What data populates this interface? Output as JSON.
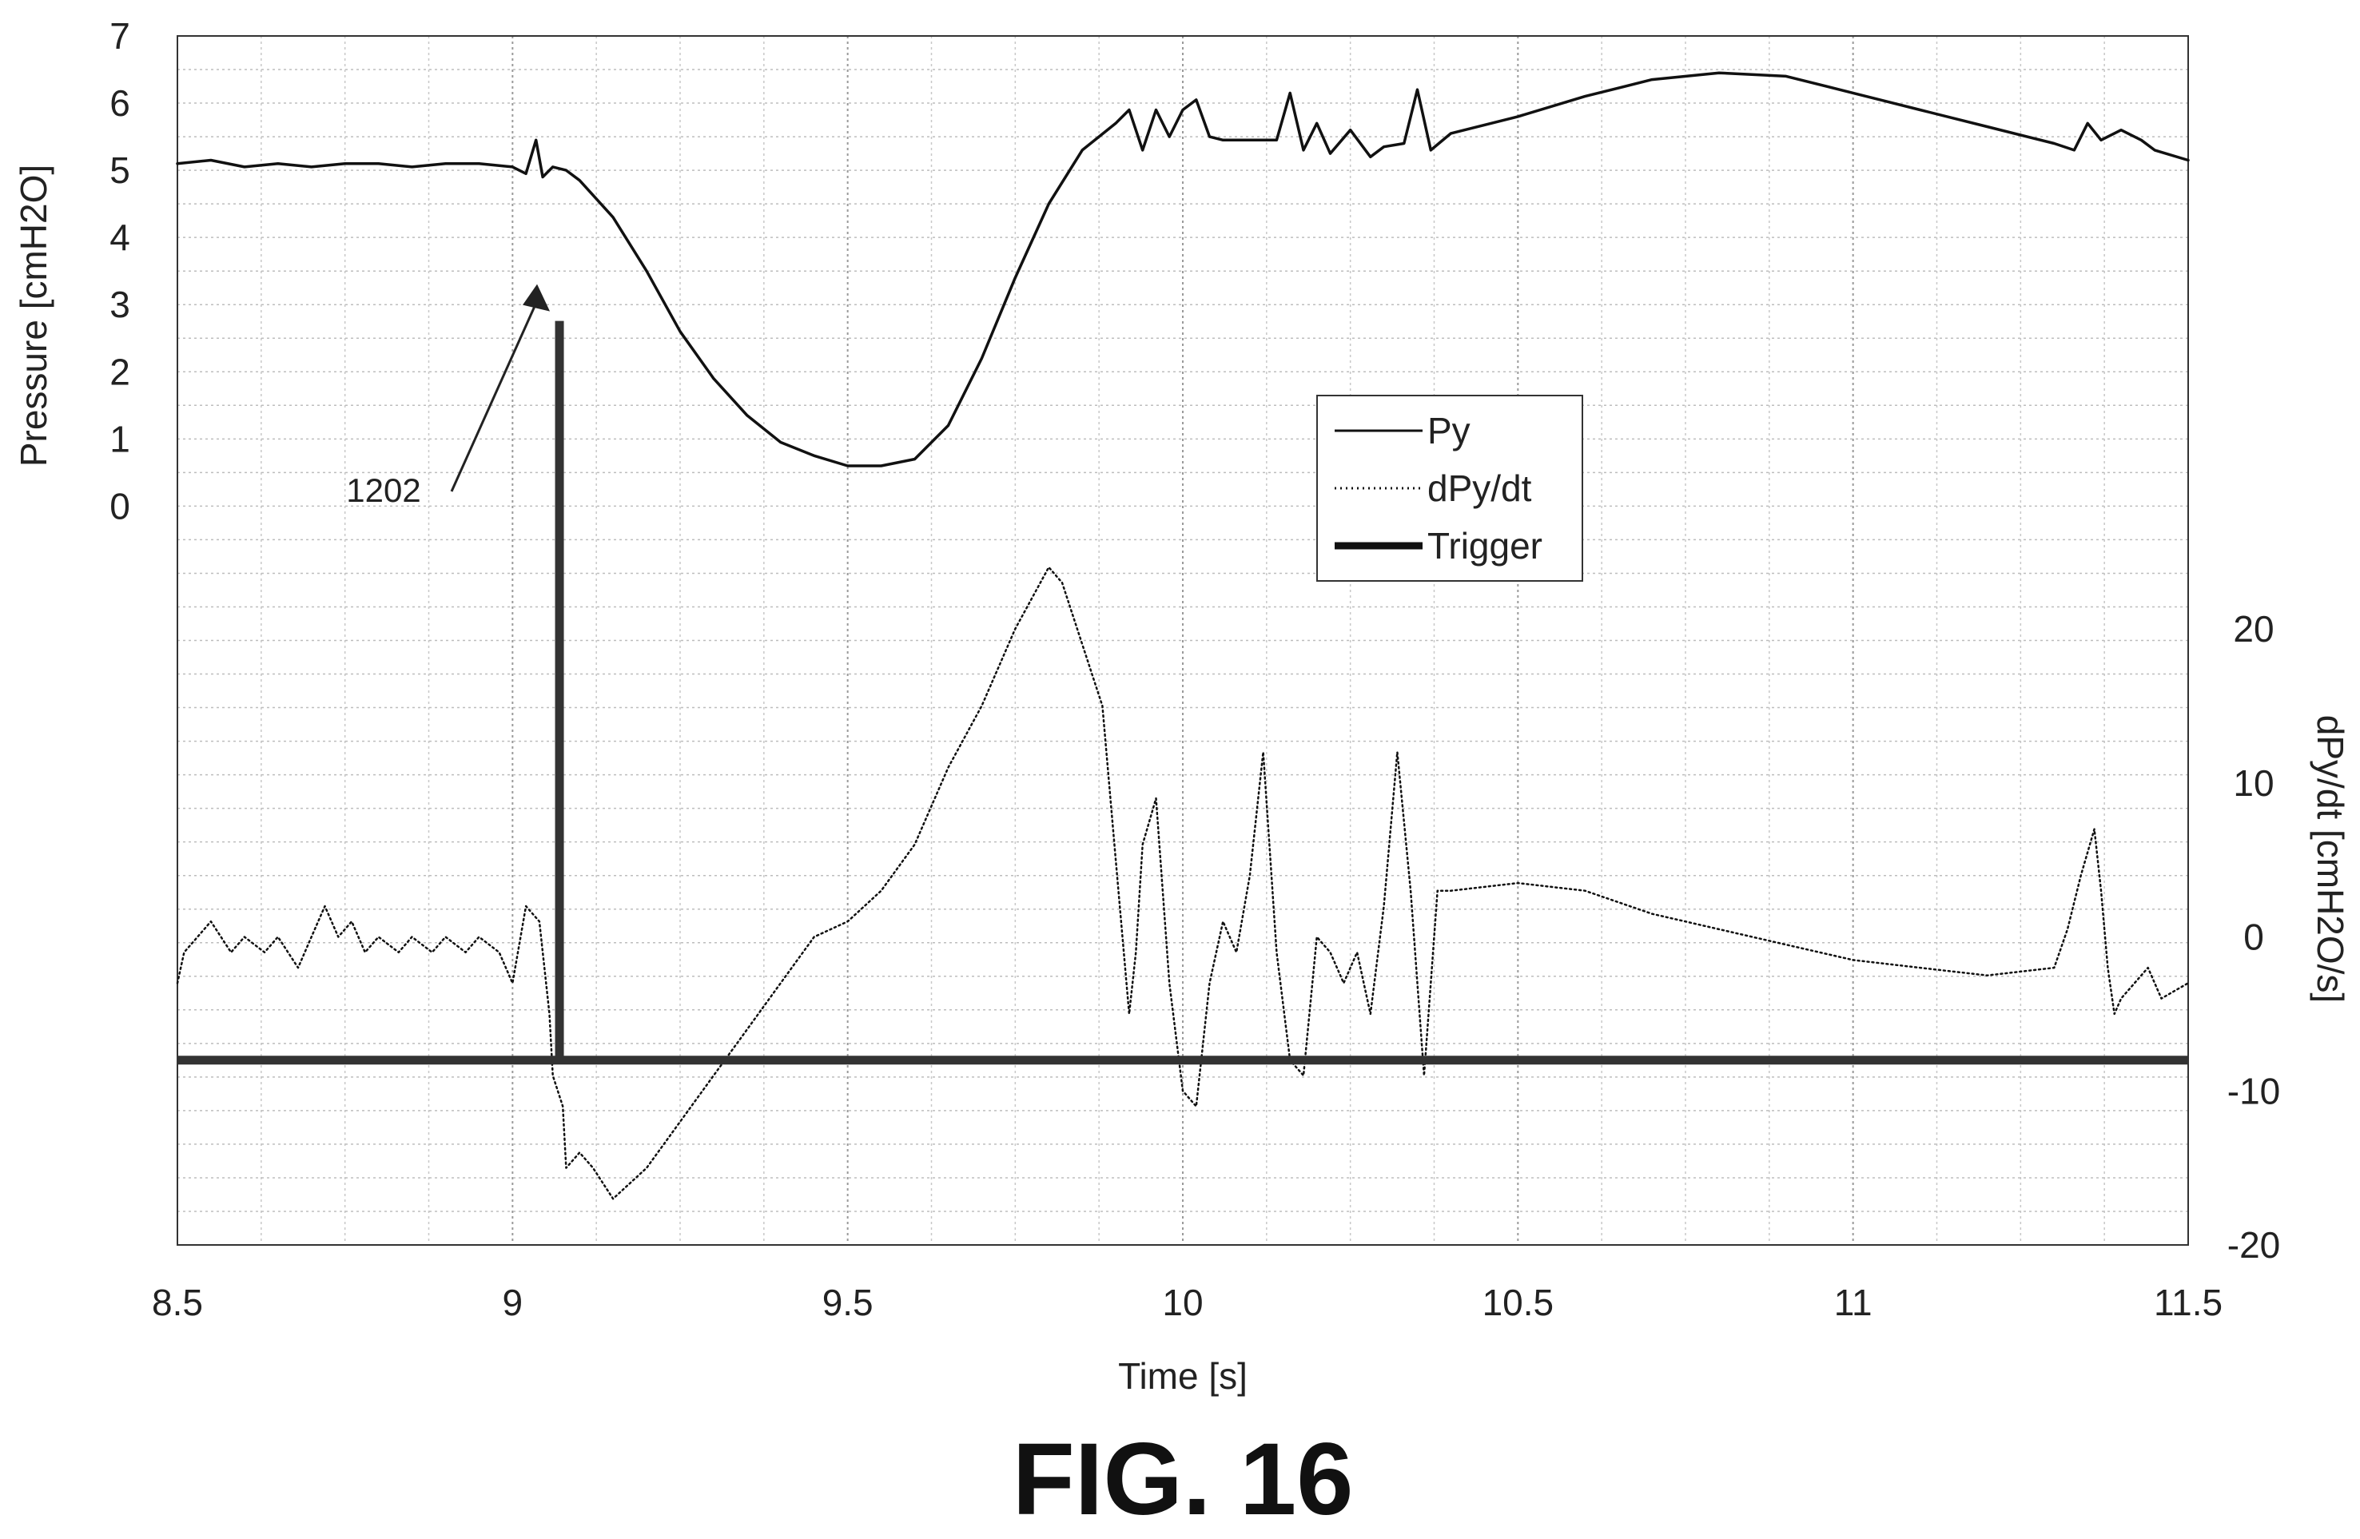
{
  "caption": "FIG. 16",
  "annotation": {
    "label": "1202"
  },
  "chart_data": {
    "type": "line",
    "xlabel": "Time [s]",
    "xlim": [
      8.5,
      11.5
    ],
    "x_ticks": [
      8.5,
      9,
      9.5,
      10,
      10.5,
      11,
      11.5
    ],
    "x_tick_labels": [
      "8.5",
      "9",
      "9.5",
      "10",
      "10.5",
      "11",
      "11.5"
    ],
    "grid": true,
    "legend_position": "center",
    "axes": {
      "left": {
        "label": "Pressure [cmH2O]",
        "range": [
          -11,
          7
        ],
        "ticks": [
          0,
          1,
          2,
          3,
          4,
          5,
          6,
          7
        ],
        "tick_labels": [
          "0",
          "1",
          "2",
          "3",
          "4",
          "5",
          "6",
          "7"
        ]
      },
      "right": {
        "label": "dPy/dt [cmH2O/s]",
        "range": [
          -20,
          58.5
        ],
        "ticks": [
          -20,
          -10,
          0,
          10,
          20
        ],
        "tick_labels": [
          "-20",
          "-10",
          "0",
          "10",
          "20"
        ]
      }
    },
    "series": [
      {
        "name": "Py",
        "axis": "left",
        "style": "solid",
        "x": [
          8.5,
          8.55,
          8.6,
          8.65,
          8.7,
          8.75,
          8.8,
          8.85,
          8.9,
          8.95,
          9.0,
          9.02,
          9.035,
          9.045,
          9.06,
          9.08,
          9.1,
          9.15,
          9.2,
          9.25,
          9.3,
          9.35,
          9.4,
          9.45,
          9.5,
          9.55,
          9.6,
          9.65,
          9.7,
          9.75,
          9.8,
          9.85,
          9.9,
          9.92,
          9.94,
          9.96,
          9.98,
          10.0,
          10.02,
          10.04,
          10.06,
          10.1,
          10.14,
          10.16,
          10.18,
          10.2,
          10.22,
          10.25,
          10.28,
          10.3,
          10.33,
          10.35,
          10.37,
          10.4,
          10.5,
          10.6,
          10.7,
          10.8,
          10.9,
          11.0,
          11.1,
          11.2,
          11.3,
          11.33,
          11.35,
          11.37,
          11.4,
          11.43,
          11.45,
          11.5
        ],
        "y": [
          5.1,
          5.15,
          5.05,
          5.1,
          5.05,
          5.1,
          5.1,
          5.05,
          5.1,
          5.1,
          5.05,
          4.95,
          5.45,
          4.9,
          5.05,
          5.0,
          4.85,
          4.3,
          3.5,
          2.6,
          1.9,
          1.35,
          0.95,
          0.75,
          0.6,
          0.6,
          0.7,
          1.2,
          2.2,
          3.4,
          4.5,
          5.3,
          5.7,
          5.9,
          5.3,
          5.9,
          5.5,
          5.9,
          6.05,
          5.5,
          5.45,
          5.45,
          5.45,
          6.15,
          5.3,
          5.7,
          5.25,
          5.6,
          5.2,
          5.35,
          5.4,
          6.2,
          5.3,
          5.55,
          5.8,
          6.1,
          6.35,
          6.45,
          6.4,
          6.15,
          5.9,
          5.65,
          5.4,
          5.3,
          5.7,
          5.45,
          5.6,
          5.45,
          5.3,
          5.15
        ]
      },
      {
        "name": "dPy/dt",
        "axis": "right",
        "style": "dotted",
        "x": [
          8.5,
          8.51,
          8.53,
          8.55,
          8.58,
          8.6,
          8.63,
          8.65,
          8.68,
          8.7,
          8.72,
          8.74,
          8.76,
          8.78,
          8.8,
          8.83,
          8.85,
          8.88,
          8.9,
          8.93,
          8.95,
          8.98,
          9.0,
          9.02,
          9.04,
          9.055,
          9.06,
          9.075,
          9.08,
          9.1,
          9.12,
          9.15,
          9.2,
          9.25,
          9.3,
          9.35,
          9.4,
          9.45,
          9.5,
          9.55,
          9.6,
          9.65,
          9.7,
          9.75,
          9.8,
          9.82,
          9.85,
          9.88,
          9.9,
          9.92,
          9.93,
          9.94,
          9.96,
          9.98,
          10.0,
          10.02,
          10.04,
          10.06,
          10.08,
          10.1,
          10.12,
          10.14,
          10.16,
          10.18,
          10.2,
          10.22,
          10.24,
          10.26,
          10.28,
          10.3,
          10.32,
          10.34,
          10.36,
          10.38,
          10.4,
          10.5,
          10.6,
          10.7,
          10.8,
          10.9,
          11.0,
          11.1,
          11.2,
          11.3,
          11.32,
          11.34,
          11.36,
          11.37,
          11.38,
          11.39,
          11.4,
          11.42,
          11.44,
          11.46,
          11.5
        ],
        "y": [
          -3,
          -1,
          0,
          1,
          -1,
          0,
          -1,
          0,
          -2,
          0,
          2,
          0,
          1,
          -1,
          0,
          -1,
          0,
          -1,
          0,
          -1,
          0,
          -1,
          -3,
          2,
          1,
          -5,
          -9,
          -11,
          -15,
          -14,
          -15,
          -17,
          -15,
          -12,
          -9,
          -6,
          -3,
          0,
          1,
          3,
          6,
          11,
          15,
          20,
          24,
          23,
          19,
          15,
          5,
          -5,
          -1,
          6,
          9,
          -3,
          -10,
          -11,
          -3,
          1,
          -1,
          4,
          12,
          -1,
          -8,
          -9,
          0,
          -1,
          -3,
          -1,
          -5,
          2,
          12,
          3,
          -9,
          3,
          3,
          3.5,
          3,
          1.5,
          0.5,
          -0.5,
          -1.5,
          -2,
          -2.5,
          -2,
          0.5,
          4,
          7,
          3,
          -2,
          -5,
          -4,
          -3,
          -2,
          -4,
          -3
        ]
      },
      {
        "name": "Trigger",
        "axis": "right",
        "style": "thick",
        "kind": "step",
        "event_x": 9.07,
        "baseline": -8,
        "peak": 40
      }
    ]
  }
}
